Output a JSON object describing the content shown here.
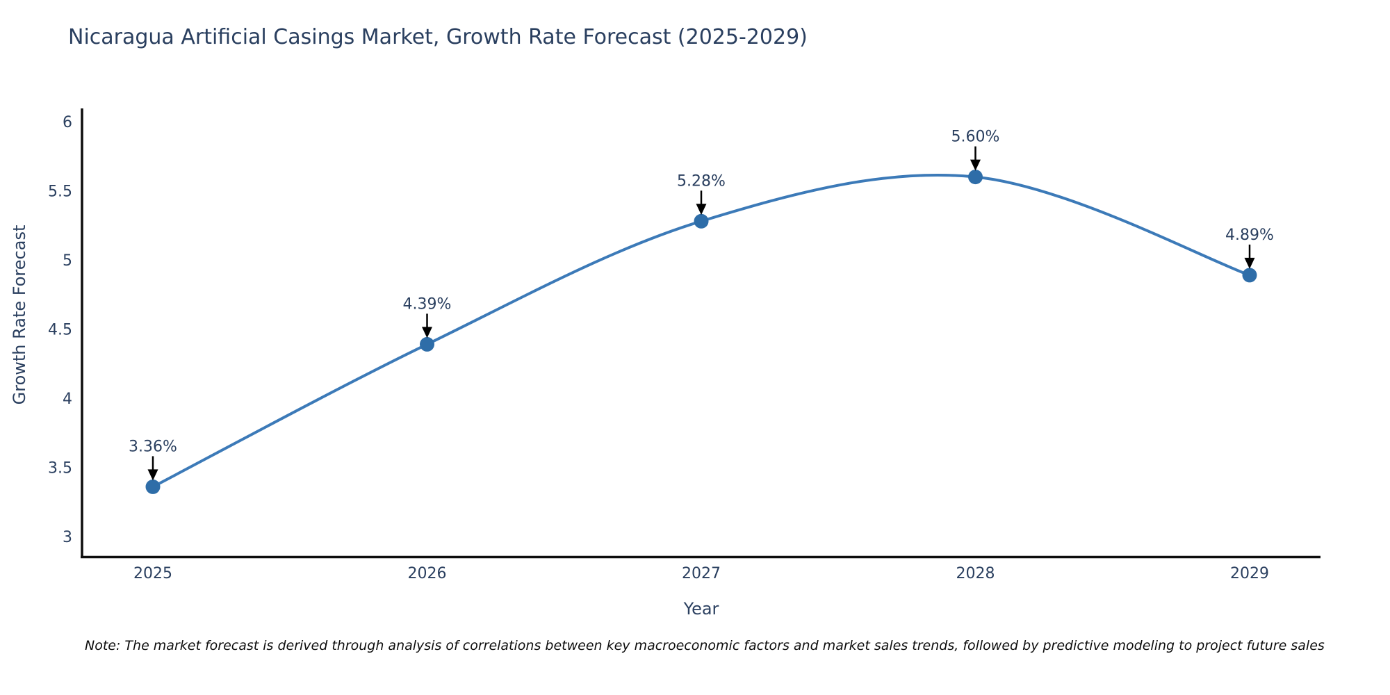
{
  "chart_data": {
    "type": "line",
    "title": "Nicaragua Artificial Casings Market, Growth Rate Forecast (2025-2029)",
    "xlabel": "Year",
    "ylabel": "Growth Rate Forecast",
    "categories": [
      "2025",
      "2026",
      "2027",
      "2028",
      "2029"
    ],
    "series": [
      {
        "name": "Growth Rate Forecast",
        "values": [
          3.36,
          4.39,
          5.28,
          5.6,
          4.89
        ],
        "point_labels": [
          "3.36%",
          "4.39%",
          "5.28%",
          "5.60%",
          "4.89%"
        ]
      }
    ],
    "ytick_labels": [
      "3",
      "3.5",
      "4",
      "4.5",
      "5",
      "5.5",
      "6"
    ],
    "ytick_values": [
      3,
      3.5,
      4,
      4.5,
      5,
      5.5,
      6
    ],
    "ylim": [
      2.84,
      6.1
    ],
    "grid": false,
    "legend_position": "none",
    "marker_style": "circle",
    "annotation_style": "value-label-with-down-arrow",
    "colors": {
      "line": "#3c7ab8",
      "marker": "#2e6da8",
      "arrow": "#000000",
      "axis": "#0d0d0d",
      "tick_text": "#2a3f5f",
      "label_text": "#2a3f5f"
    }
  },
  "footer": {
    "note": "Note: The market forecast is derived through analysis of correlations between key macroeconomic factors and market sales trends, followed by predictive modeling to project future sales"
  }
}
